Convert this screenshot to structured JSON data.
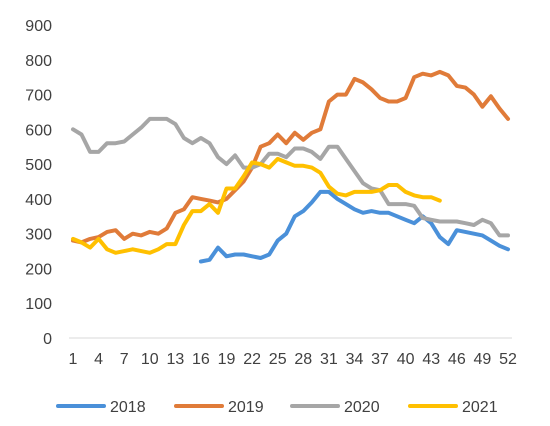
{
  "chart_data": {
    "type": "line",
    "title": "",
    "xlabel": "",
    "ylabel": "",
    "xlim": [
      1,
      52
    ],
    "ylim": [
      0,
      900
    ],
    "y_ticks": [
      0,
      100,
      200,
      300,
      400,
      500,
      600,
      700,
      800,
      900
    ],
    "x_ticks": [
      1,
      4,
      7,
      10,
      13,
      16,
      19,
      22,
      25,
      28,
      31,
      34,
      37,
      40,
      43,
      46,
      49,
      52
    ],
    "grid": false,
    "legend_position": "bottom",
    "series": [
      {
        "name": "2018",
        "color": "#4A90D9",
        "x": [
          16,
          17,
          18,
          19,
          20,
          21,
          22,
          23,
          24,
          25,
          26,
          27,
          28,
          29,
          30,
          31,
          32,
          33,
          34,
          35,
          36,
          37,
          38,
          39,
          40,
          41,
          42,
          43,
          44,
          45,
          46,
          47,
          48,
          49,
          50,
          51,
          52
        ],
        "values": [
          220,
          225,
          260,
          235,
          240,
          240,
          235,
          230,
          240,
          280,
          300,
          350,
          365,
          390,
          420,
          420,
          400,
          385,
          370,
          360,
          365,
          360,
          360,
          350,
          340,
          330,
          350,
          330,
          290,
          270,
          310,
          305,
          300,
          295,
          280,
          265,
          255
        ]
      },
      {
        "name": "2019",
        "color": "#E07B39",
        "x": [
          1,
          2,
          3,
          4,
          5,
          6,
          7,
          8,
          9,
          10,
          11,
          12,
          13,
          14,
          15,
          16,
          17,
          18,
          19,
          20,
          21,
          22,
          23,
          24,
          25,
          26,
          27,
          28,
          29,
          30,
          31,
          32,
          33,
          34,
          35,
          36,
          37,
          38,
          39,
          40,
          41,
          42,
          43,
          44,
          45,
          46,
          47,
          48,
          49,
          50,
          51,
          52
        ],
        "values": [
          280,
          275,
          285,
          290,
          305,
          310,
          285,
          300,
          295,
          305,
          300,
          315,
          360,
          370,
          405,
          400,
          395,
          390,
          400,
          425,
          450,
          490,
          550,
          560,
          585,
          560,
          590,
          570,
          590,
          600,
          680,
          700,
          700,
          745,
          735,
          715,
          690,
          680,
          680,
          690,
          750,
          760,
          755,
          765,
          755,
          725,
          720,
          700,
          665,
          695,
          660,
          630
        ]
      },
      {
        "name": "2020",
        "color": "#A6A6A6",
        "x": [
          1,
          2,
          3,
          4,
          5,
          6,
          7,
          8,
          9,
          10,
          11,
          12,
          13,
          14,
          15,
          16,
          17,
          18,
          19,
          20,
          21,
          22,
          23,
          24,
          25,
          26,
          27,
          28,
          29,
          30,
          31,
          32,
          33,
          34,
          35,
          36,
          37,
          38,
          39,
          40,
          41,
          42,
          43,
          44,
          45,
          46,
          47,
          48,
          49,
          50,
          51,
          52
        ],
        "values": [
          600,
          585,
          535,
          535,
          560,
          560,
          565,
          585,
          605,
          630,
          630,
          630,
          615,
          575,
          560,
          575,
          560,
          520,
          500,
          525,
          490,
          490,
          500,
          530,
          530,
          520,
          545,
          545,
          535,
          515,
          550,
          550,
          515,
          480,
          445,
          430,
          425,
          385,
          385,
          385,
          380,
          345,
          340,
          335,
          335,
          335,
          330,
          325,
          340,
          330,
          295,
          295
        ]
      },
      {
        "name": "2021",
        "color": "#FFC000",
        "x": [
          1,
          2,
          3,
          4,
          5,
          6,
          7,
          8,
          9,
          10,
          11,
          12,
          13,
          14,
          15,
          16,
          17,
          18,
          19,
          20,
          21,
          22,
          23,
          24,
          25,
          26,
          27,
          28,
          29,
          30,
          31,
          32,
          33,
          34,
          35,
          36,
          37,
          38,
          39,
          40,
          41,
          42,
          43,
          44
        ],
        "values": [
          285,
          275,
          260,
          285,
          255,
          245,
          250,
          255,
          250,
          245,
          255,
          270,
          270,
          325,
          365,
          365,
          385,
          360,
          430,
          430,
          465,
          505,
          500,
          490,
          515,
          505,
          495,
          495,
          490,
          475,
          435,
          415,
          410,
          420,
          420,
          420,
          425,
          440,
          440,
          420,
          410,
          405,
          405,
          395
        ]
      }
    ]
  }
}
